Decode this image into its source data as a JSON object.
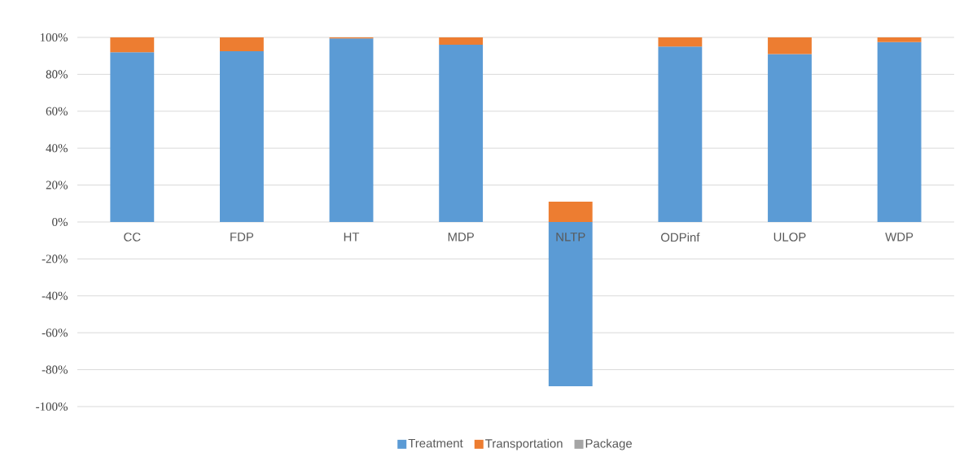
{
  "chart_data": {
    "type": "bar",
    "stacked": true,
    "categories": [
      "CC",
      "FDP",
      "HT",
      "MDP",
      "NLTP",
      "ODPinf",
      "ULOP",
      "WDP"
    ],
    "series": [
      {
        "name": "Treatment",
        "color": "#5b9bd5",
        "values": [
          92,
          92.5,
          99.5,
          96,
          -89,
          95,
          91,
          97.5
        ]
      },
      {
        "name": "Transportation",
        "color": "#ed7d31",
        "values": [
          8,
          7.5,
          0.5,
          4,
          11,
          5,
          9,
          2.5
        ]
      },
      {
        "name": "Package",
        "color": "#a5a5a5",
        "values": [
          0,
          0,
          0,
          0,
          0,
          0,
          0,
          0
        ]
      }
    ],
    "ylim": [
      -100,
      100
    ],
    "yticks": [
      {
        "value": -100,
        "label": "-100%"
      },
      {
        "value": -80,
        "label": "-80%"
      },
      {
        "value": -60,
        "label": "-60%"
      },
      {
        "value": -40,
        "label": "-40%"
      },
      {
        "value": -20,
        "label": "-20%"
      },
      {
        "value": 0,
        "label": "0%"
      },
      {
        "value": 20,
        "label": "20%"
      },
      {
        "value": 40,
        "label": "40%"
      },
      {
        "value": 60,
        "label": "60%"
      },
      {
        "value": 80,
        "label": "80%"
      },
      {
        "value": 100,
        "label": "100%"
      }
    ],
    "grid": "y",
    "legend": "bottom"
  }
}
